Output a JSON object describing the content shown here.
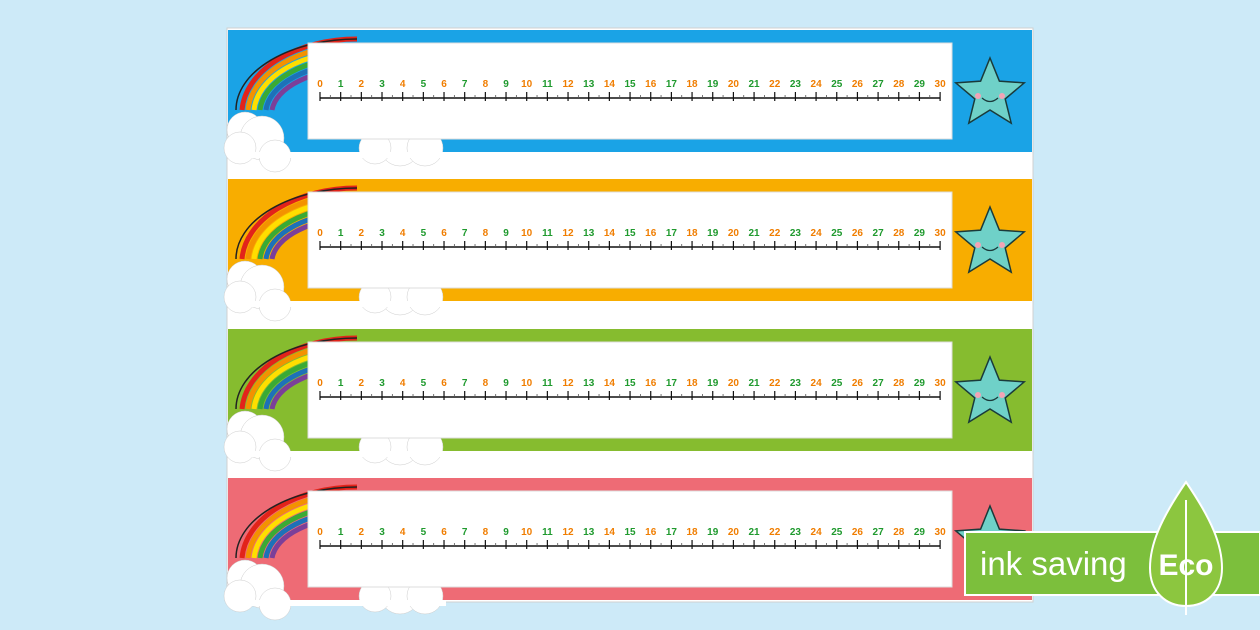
{
  "strips": [
    {
      "color": "#1aa3e6",
      "numbers": [
        0,
        1,
        2,
        3,
        4,
        5,
        6,
        7,
        8,
        9,
        10,
        11,
        12,
        13,
        14,
        15,
        16,
        17,
        18,
        19,
        20,
        21,
        22,
        23,
        24,
        25,
        26,
        27,
        28,
        29,
        30
      ]
    },
    {
      "color": "#f8ad00",
      "numbers": [
        0,
        1,
        2,
        3,
        4,
        5,
        6,
        7,
        8,
        9,
        10,
        11,
        12,
        13,
        14,
        15,
        16,
        17,
        18,
        19,
        20,
        21,
        22,
        23,
        24,
        25,
        26,
        27,
        28,
        29,
        30
      ]
    },
    {
      "color": "#86bc2f",
      "numbers": [
        0,
        1,
        2,
        3,
        4,
        5,
        6,
        7,
        8,
        9,
        10,
        11,
        12,
        13,
        14,
        15,
        16,
        17,
        18,
        19,
        20,
        21,
        22,
        23,
        24,
        25,
        26,
        27,
        28,
        29,
        30
      ]
    },
    {
      "color": "#ee6b75",
      "numbers": [
        0,
        1,
        2,
        3,
        4,
        5,
        6,
        7,
        8,
        9,
        10,
        11,
        12,
        13,
        14,
        15,
        16,
        17,
        18,
        19,
        20,
        21,
        22,
        23,
        24,
        25,
        26,
        27,
        28,
        29,
        30
      ]
    }
  ],
  "badge": {
    "text": "ink saving",
    "label": "Eco"
  }
}
